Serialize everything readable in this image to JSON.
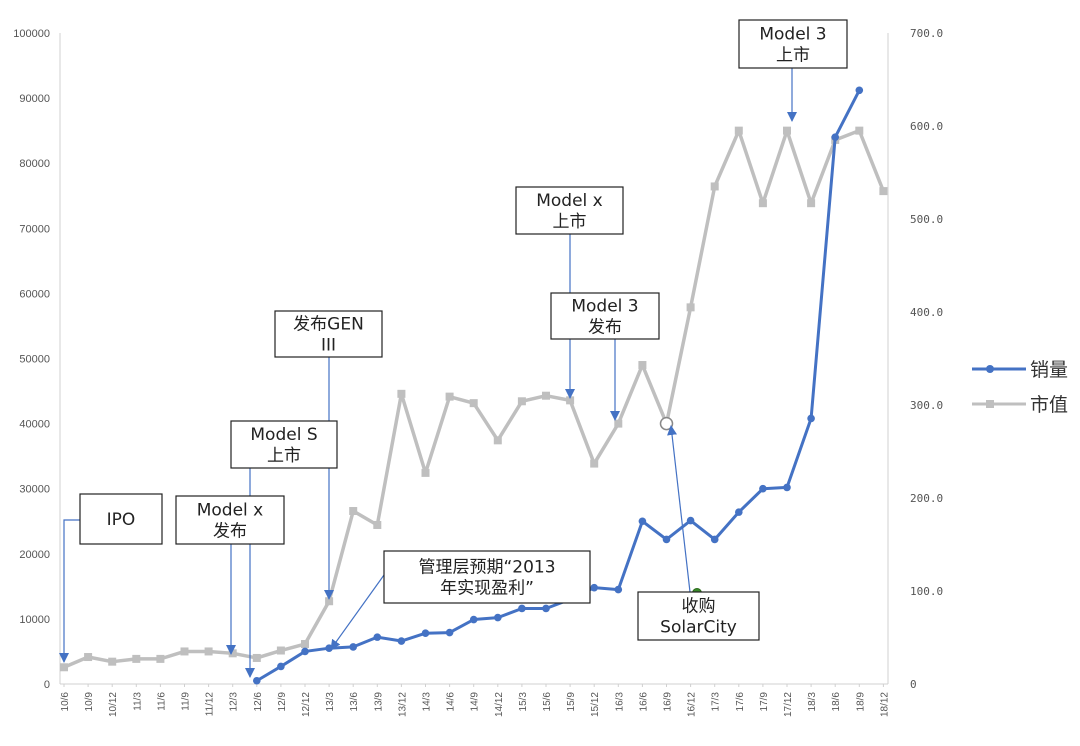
{
  "chart_data": {
    "type": "line",
    "categories": [
      "10/6",
      "10/9",
      "10/12",
      "11/3",
      "11/6",
      "11/9",
      "11/12",
      "12/3",
      "12/6",
      "12/9",
      "12/12",
      "13/3",
      "13/6",
      "13/9",
      "13/12",
      "14/3",
      "14/6",
      "14/9",
      "14/12",
      "15/3",
      "15/6",
      "15/9",
      "15/12",
      "16/3",
      "16/6",
      "16/9",
      "16/12",
      "17/3",
      "17/6",
      "17/9",
      "17/12",
      "18/3",
      "18/6",
      "18/9",
      "18/12"
    ],
    "left_axis": {
      "min": 0,
      "max": 100000,
      "ticks": [
        "0",
        "10000",
        "20000",
        "30000",
        "40000",
        "50000",
        "60000",
        "70000",
        "80000",
        "90000",
        "100000"
      ]
    },
    "right_axis": {
      "min": 0,
      "max": 700,
      "ticks": [
        "0",
        "100.0",
        "200.0",
        "300.0",
        "400.0",
        "500.0",
        "600.0",
        "700.0"
      ]
    },
    "series": [
      {
        "name": "销量",
        "axis": "left",
        "color": "#4472c4",
        "values": [
          null,
          null,
          null,
          null,
          null,
          null,
          null,
          null,
          500,
          2700,
          5000,
          5500,
          5700,
          7200,
          6600,
          7800,
          7900,
          9900,
          10200,
          11600,
          11600,
          13000,
          14800,
          14500,
          25000,
          22200,
          25100,
          22200,
          26400,
          30000,
          30200,
          40800,
          84000,
          91200,
          null
        ]
      },
      {
        "name": "市值",
        "axis": "right",
        "color": "#bfbfbf",
        "values": [
          18,
          29,
          24,
          27,
          27,
          35,
          35,
          33,
          28,
          36,
          43,
          89,
          186,
          171,
          312,
          227,
          309,
          302,
          262,
          304,
          310,
          305,
          237,
          280,
          343,
          280,
          405,
          535,
          595,
          517,
          595,
          517,
          585,
          595,
          530
        ]
      }
    ],
    "annotations": [
      {
        "lines": [
          "IPO"
        ]
      },
      {
        "lines": [
          "Model x",
          "发布"
        ]
      },
      {
        "lines": [
          "Model S",
          "上市"
        ]
      },
      {
        "lines": [
          "发布GEN",
          "III"
        ]
      },
      {
        "lines": [
          "管理层预期“2013",
          "年实现盈利”"
        ]
      },
      {
        "lines": [
          "Model x",
          "上市"
        ]
      },
      {
        "lines": [
          "Model 3",
          "发布"
        ]
      },
      {
        "lines": [
          "收购",
          "SolarCity"
        ]
      },
      {
        "lines": [
          "Model 3",
          "上市"
        ]
      }
    ],
    "legend": {
      "position": "right",
      "entries": [
        "销量",
        "市值"
      ]
    },
    "grid": false
  }
}
